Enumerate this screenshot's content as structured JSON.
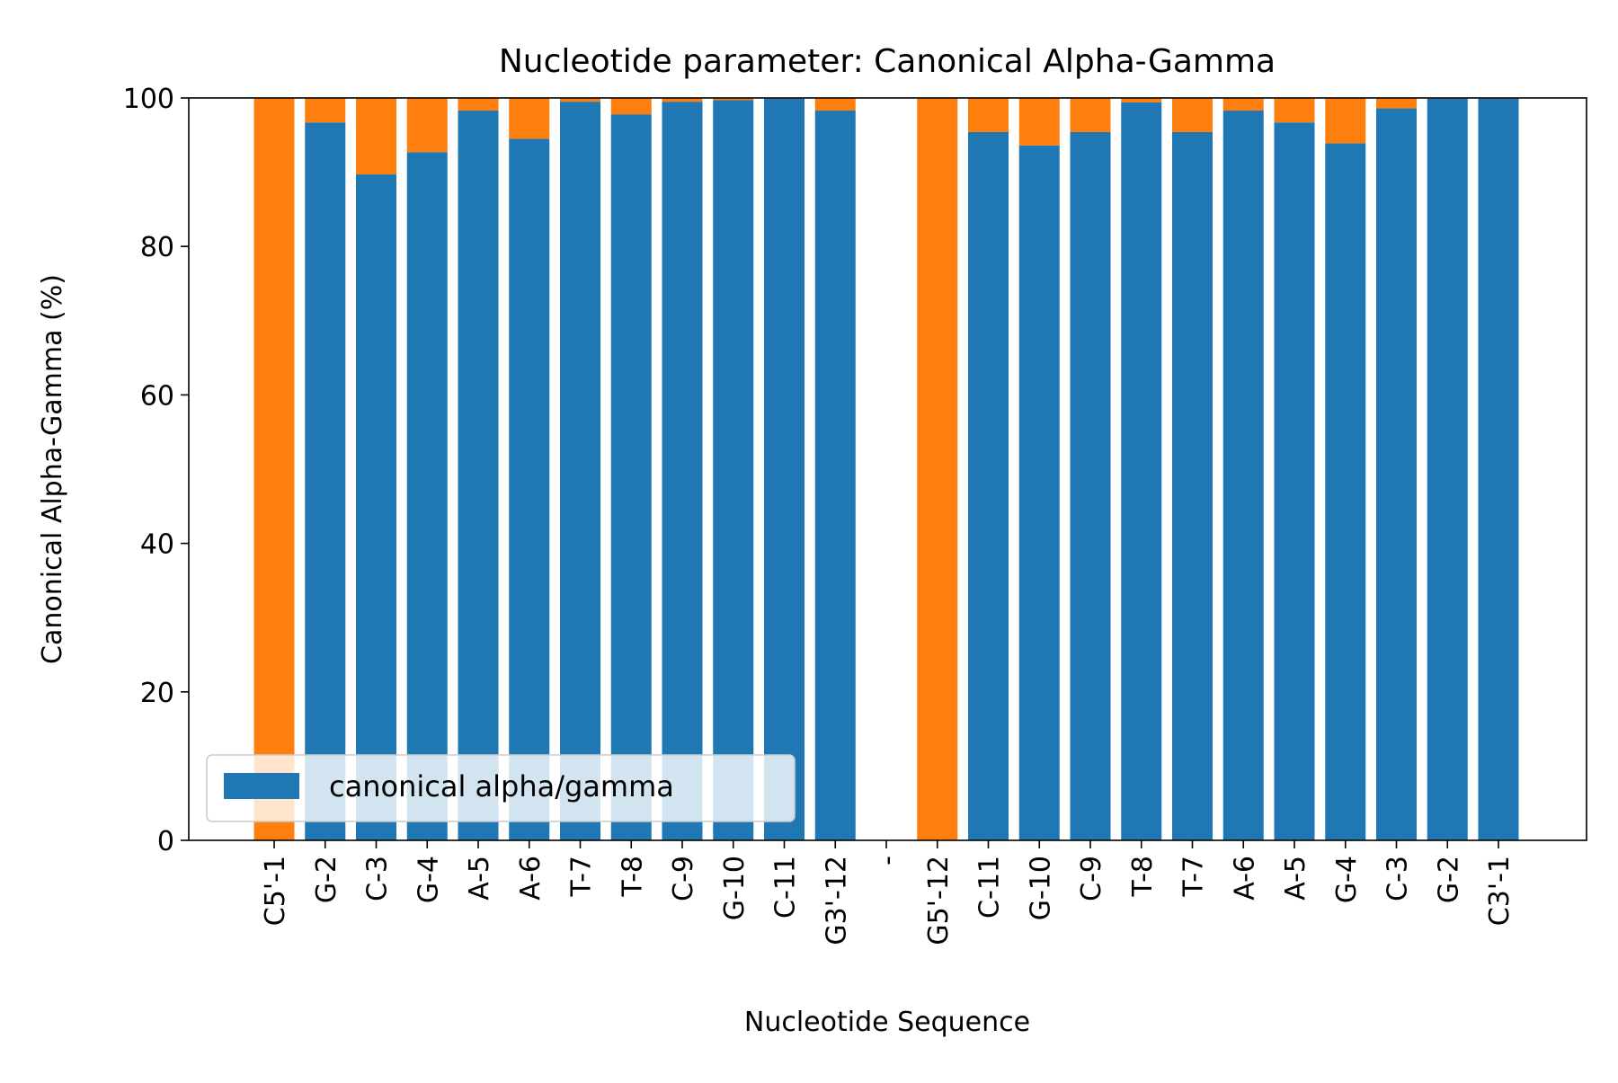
{
  "chart_data": {
    "type": "bar",
    "stacked": true,
    "title": "Nucleotide parameter: Canonical Alpha-Gamma",
    "xlabel": "Nucleotide Sequence",
    "ylabel": "Canonical Alpha-Gamma (%)",
    "ylim": [
      0,
      100
    ],
    "yticks": [
      0,
      20,
      40,
      60,
      80,
      100
    ],
    "grid": false,
    "legend_position": "lower-left",
    "categories": [
      "C5'-1",
      "G-2",
      "C-3",
      "G-4",
      "A-5",
      "A-6",
      "T-7",
      "T-8",
      "C-9",
      "G-10",
      "C-11",
      "G3'-12",
      "-",
      "G5'-12",
      "C-11",
      "G-10",
      "C-9",
      "T-8",
      "T-7",
      "A-6",
      "A-5",
      "G-4",
      "C-3",
      "G-2",
      "C3'-1"
    ],
    "series": [
      {
        "name": "canonical alpha/gamma",
        "color": "#1f77b4",
        "values": [
          0,
          96.7,
          89.7,
          92.7,
          98.3,
          94.5,
          99.5,
          97.8,
          99.5,
          99.7,
          99.9,
          98.3,
          0,
          0,
          95.4,
          93.6,
          95.4,
          99.4,
          95.4,
          98.3,
          96.7,
          93.9,
          98.6,
          99.9,
          99.9
        ]
      },
      {
        "color": "#ff7f0e",
        "values": [
          100,
          3.3,
          10.3,
          7.3,
          1.7,
          5.5,
          0.5,
          2.2,
          0.5,
          0.3,
          0.1,
          1.7,
          0,
          100,
          4.6,
          6.4,
          4.6,
          0.6,
          4.6,
          1.7,
          3.3,
          6.1,
          1.4,
          0.1,
          0.1
        ]
      }
    ]
  }
}
